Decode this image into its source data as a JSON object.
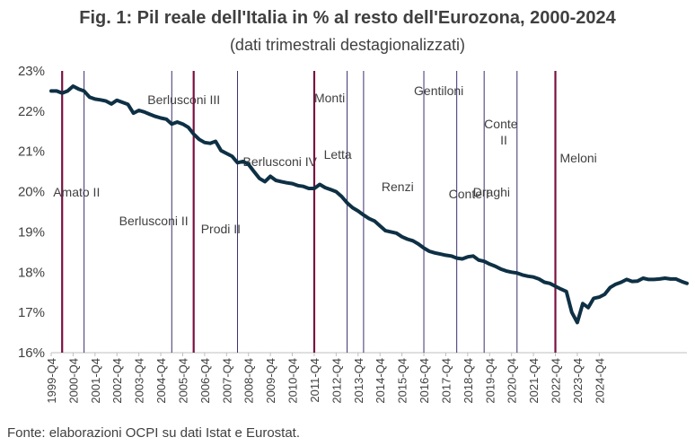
{
  "title": "Fig. 1: Pil reale dell'Italia in % al resto dell'Eurozona, 2000-2024",
  "subtitle": "(dati trimestrali destagionalizzati)",
  "source": "Fonte: elaborazioni OCPI su dati Istat e Eurostat.",
  "colors": {
    "line": "#0e3045",
    "bar_divider": "#7a1040",
    "bar_thin": "#3d2f6e",
    "axis": "#bfbfbf",
    "text": "#404040"
  },
  "chart_data": {
    "type": "line",
    "title": "Fig. 1: Pil reale dell'Italia in % al resto dell'Eurozona, 2000-2024",
    "subtitle": "(dati trimestrali destagionalizzati)",
    "ylim": [
      16,
      23
    ],
    "yticks": [
      "16%",
      "17%",
      "18%",
      "19%",
      "20%",
      "21%",
      "22%",
      "23%"
    ],
    "xtick_labels": [
      "1999-Q4",
      "2000-Q4",
      "2001-Q4",
      "2002-Q4",
      "2003-Q4",
      "2004-Q4",
      "2005-Q4",
      "2006-Q4",
      "2007-Q4",
      "2008-Q4",
      "2009-Q4",
      "2010-Q4",
      "2011-Q4",
      "2012-Q4",
      "2013-Q4",
      "2014-Q4",
      "2015-Q4",
      "2016-Q4",
      "2017-Q4",
      "2018-Q4",
      "2019-Q4",
      "2020-Q4",
      "2021-Q4",
      "2022-Q4",
      "2023-Q4",
      "2024-Q4"
    ],
    "grid": false,
    "series": [
      {
        "values": [
          22.5,
          22.5,
          22.45,
          22.5,
          22.62,
          22.55,
          22.5,
          22.35,
          22.3,
          22.28,
          22.25,
          22.18,
          22.27,
          22.22,
          22.17,
          21.95,
          22.02,
          21.98,
          21.92,
          21.87,
          21.83,
          21.8,
          21.68,
          21.73,
          21.68,
          21.6,
          21.43,
          21.3,
          21.22,
          21.2,
          21.25,
          21.02,
          20.95,
          20.88,
          20.72,
          20.75,
          20.68,
          20.5,
          20.33,
          20.25,
          20.38,
          20.28,
          20.25,
          20.22,
          20.2,
          20.15,
          20.13,
          20.08,
          20.08,
          20.18,
          20.1,
          20.05,
          20.0,
          19.88,
          19.72,
          19.6,
          19.52,
          19.42,
          19.33,
          19.27,
          19.15,
          19.03,
          19.0,
          18.97,
          18.88,
          18.82,
          18.78,
          18.7,
          18.6,
          18.52,
          18.48,
          18.45,
          18.42,
          18.4,
          18.35,
          18.33,
          18.38,
          18.4,
          18.3,
          18.27,
          18.2,
          18.15,
          18.08,
          18.03,
          18.0,
          17.98,
          17.93,
          17.9,
          17.88,
          17.83,
          17.75,
          17.72,
          17.65,
          17.58,
          17.52,
          17.0,
          16.75,
          17.22,
          17.12,
          17.35,
          17.38,
          17.45,
          17.62,
          17.7,
          17.75,
          17.82,
          17.77,
          17.78,
          17.85,
          17.82,
          17.82,
          17.83,
          17.85,
          17.83,
          17.83,
          17.77,
          17.72
        ]
      }
    ],
    "government_periods": [
      {
        "name": "Amato II",
        "start_label": "2000-Q2",
        "major": true
      },
      {
        "name": "Berlusconi II",
        "start_label": "2001-Q2",
        "major": false
      },
      {
        "name": "Berlusconi III",
        "start_label": "2005-Q2",
        "major": false
      },
      {
        "name": "Prodi II",
        "start_label": "2006-Q2",
        "major": true
      },
      {
        "name": "Berlusconi IV",
        "start_label": "2008-Q2",
        "major": false
      },
      {
        "name": "Monti",
        "start_label": "2011-Q4",
        "major": true
      },
      {
        "name": "Letta",
        "start_label": "2013-Q2",
        "major": false
      },
      {
        "name": "Renzi",
        "start_label": "2014-Q1",
        "major": false
      },
      {
        "name": "Gentiloni",
        "start_label": "2016-Q4",
        "major": false
      },
      {
        "name": "Conte I",
        "start_label": "2018-Q2",
        "major": false
      },
      {
        "name": "Conte II",
        "start_label": "2019-Q3",
        "major": false
      },
      {
        "name": "Draghi",
        "start_label": "2021-Q1",
        "major": false
      },
      {
        "name": "Meloni",
        "start_label": "2022-Q4",
        "major": true
      }
    ]
  }
}
